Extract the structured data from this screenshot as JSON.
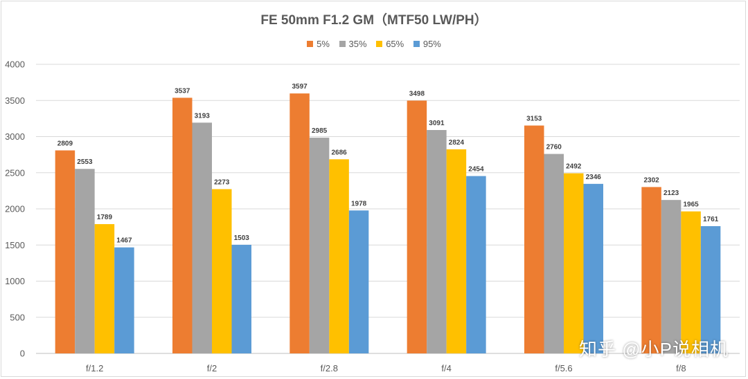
{
  "colors": [
    "#ED7D31",
    "#A5A5A5",
    "#FFC000",
    "#5B9BD5"
  ],
  "watermark": "知乎 @小P说相机",
  "chart_data": {
    "type": "bar",
    "title": "FE 50mm F1.2 GM（MTF50 LW/PH）",
    "xlabel": "",
    "ylabel": "",
    "ylim": [
      0,
      4000
    ],
    "yticks": [
      0,
      500,
      1000,
      1500,
      2000,
      2500,
      3000,
      3500,
      4000
    ],
    "grid": true,
    "legend_position": "top",
    "categories": [
      "f/1.2",
      "f/2",
      "f/2.8",
      "f/4",
      "f/5.6",
      "f/8"
    ],
    "series": [
      {
        "name": "5%",
        "values": [
          2809,
          3537,
          3597,
          3498,
          3153,
          2302
        ]
      },
      {
        "name": "35%",
        "values": [
          2553,
          3193,
          2985,
          3091,
          2760,
          2123
        ]
      },
      {
        "name": "65%",
        "values": [
          1789,
          2273,
          2686,
          2824,
          2492,
          1965
        ]
      },
      {
        "name": "95%",
        "values": [
          1467,
          1503,
          1978,
          2454,
          2346,
          1761
        ]
      }
    ]
  }
}
